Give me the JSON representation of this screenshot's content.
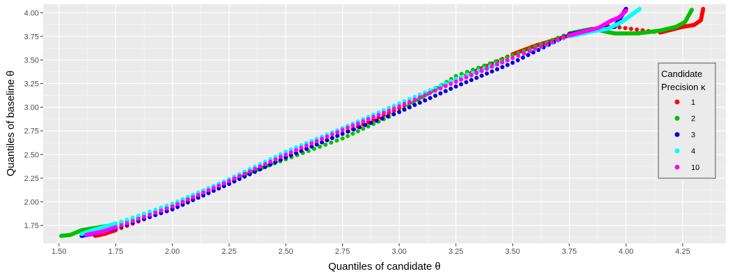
{
  "chart_data": {
    "type": "scatter",
    "xlabel": "Quantiles of candidate θ",
    "ylabel": "Quantiles of baseline θ",
    "xlim": [
      1.43,
      4.44
    ],
    "ylim": [
      1.56,
      4.09
    ],
    "x_ticks": [
      "1.50",
      "1.75",
      "2.00",
      "2.25",
      "2.50",
      "2.75",
      "3.00",
      "3.25",
      "3.50",
      "3.75",
      "4.00",
      "4.25"
    ],
    "y_ticks": [
      "1.75",
      "2.00",
      "2.25",
      "2.50",
      "2.75",
      "3.00",
      "3.25",
      "3.50",
      "3.75",
      "4.00"
    ],
    "grid": true,
    "legend": {
      "title_lines": [
        "Candidate",
        "Precision κ"
      ],
      "position": "right"
    },
    "series": [
      {
        "name": "1",
        "color": "#ff0000",
        "points": [
          [
            1.66,
            1.64
          ],
          [
            1.7,
            1.66
          ],
          [
            1.75,
            1.7
          ],
          [
            2.0,
            1.93
          ],
          [
            2.25,
            2.21
          ],
          [
            2.5,
            2.47
          ],
          [
            2.75,
            2.72
          ],
          [
            3.0,
            2.99
          ],
          [
            3.25,
            3.29
          ],
          [
            3.5,
            3.56
          ],
          [
            3.6,
            3.65
          ],
          [
            3.75,
            3.76
          ],
          [
            3.85,
            3.82
          ],
          [
            3.92,
            3.86
          ],
          [
            4.15,
            3.79
          ],
          [
            4.2,
            3.82
          ],
          [
            4.25,
            3.85
          ],
          [
            4.3,
            3.87
          ],
          [
            4.33,
            3.92
          ],
          [
            4.34,
            4.04
          ]
        ]
      },
      {
        "name": "2",
        "color": "#00c000",
        "points": [
          [
            1.51,
            1.64
          ],
          [
            1.55,
            1.65
          ],
          [
            1.6,
            1.7
          ],
          [
            1.75,
            1.76
          ],
          [
            2.0,
            1.96
          ],
          [
            2.25,
            2.23
          ],
          [
            2.5,
            2.45
          ],
          [
            2.75,
            2.67
          ],
          [
            3.0,
            2.95
          ],
          [
            3.25,
            3.33
          ],
          [
            3.5,
            3.55
          ],
          [
            3.75,
            3.78
          ],
          [
            3.85,
            3.83
          ],
          [
            3.95,
            3.78
          ],
          [
            4.05,
            3.78
          ],
          [
            4.15,
            3.81
          ],
          [
            4.22,
            3.85
          ],
          [
            4.26,
            3.9
          ],
          [
            4.29,
            4.03
          ]
        ]
      },
      {
        "name": "3",
        "color": "#0000dd",
        "points": [
          [
            1.6,
            1.64
          ],
          [
            1.65,
            1.66
          ],
          [
            1.75,
            1.72
          ],
          [
            2.0,
            1.92
          ],
          [
            2.25,
            2.19
          ],
          [
            2.5,
            2.47
          ],
          [
            2.75,
            2.72
          ],
          [
            3.0,
            2.95
          ],
          [
            3.25,
            3.22
          ],
          [
            3.5,
            3.47
          ],
          [
            3.75,
            3.77
          ],
          [
            3.85,
            3.82
          ],
          [
            3.95,
            3.85
          ],
          [
            4.0,
            4.04
          ]
        ]
      },
      {
        "name": "4",
        "color": "#00ffff",
        "points": [
          [
            1.6,
            1.66
          ],
          [
            1.65,
            1.7
          ],
          [
            1.75,
            1.77
          ],
          [
            2.0,
            1.98
          ],
          [
            2.25,
            2.24
          ],
          [
            2.5,
            2.53
          ],
          [
            2.75,
            2.78
          ],
          [
            3.0,
            3.04
          ],
          [
            3.25,
            3.3
          ],
          [
            3.5,
            3.52
          ],
          [
            3.75,
            3.75
          ],
          [
            3.85,
            3.8
          ],
          [
            3.92,
            3.83
          ],
          [
            3.98,
            3.9
          ],
          [
            4.02,
            3.97
          ],
          [
            4.06,
            4.04
          ]
        ]
      },
      {
        "name": "10",
        "color": "#ff00ff",
        "points": [
          [
            1.62,
            1.65
          ],
          [
            1.7,
            1.69
          ],
          [
            1.75,
            1.73
          ],
          [
            2.0,
            1.95
          ],
          [
            2.25,
            2.22
          ],
          [
            2.5,
            2.5
          ],
          [
            2.75,
            2.76
          ],
          [
            3.0,
            3.01
          ],
          [
            3.25,
            3.27
          ],
          [
            3.5,
            3.52
          ],
          [
            3.75,
            3.76
          ],
          [
            3.88,
            3.84
          ],
          [
            3.93,
            3.91
          ],
          [
            3.97,
            3.95
          ],
          [
            4.0,
            4.02
          ]
        ]
      }
    ]
  }
}
